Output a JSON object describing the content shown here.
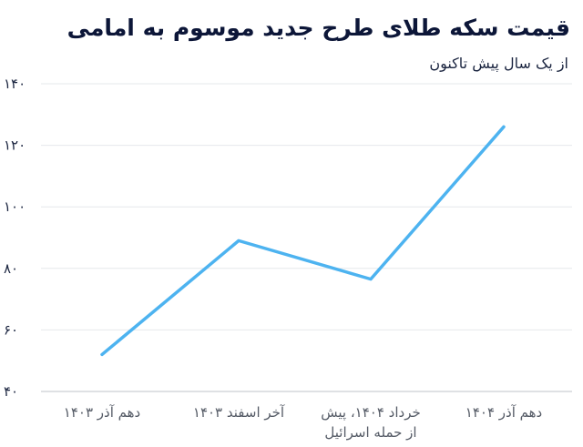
{
  "chart_data": {
    "type": "line",
    "title": "قیمت سکه طلای طرح جدید موسوم به امامی",
    "subtitle": "از یک سال پیش تاکنون",
    "xlabel": "",
    "ylabel": "",
    "categories": [
      [
        "دهم آذر ۱۴۰۳"
      ],
      [
        "آخر اسفند ۱۴۰۳"
      ],
      [
        "خرداد ۱۴۰۴، پیش",
        "از حمله اسرائیل"
      ],
      [
        "دهم آذر ۱۴۰۴"
      ]
    ],
    "series": [
      {
        "values": [
          52,
          89,
          76.5,
          126
        ],
        "color": "#4db3f0"
      }
    ],
    "ylim": [
      40,
      140
    ],
    "yticks": [
      40,
      60,
      80,
      100,
      120,
      140
    ],
    "ytick_labels": [
      "۴۰",
      "۶۰",
      "۸۰",
      "۱۰۰",
      "۱۲۰",
      "۱۴۰"
    ],
    "grid": true,
    "legend": "none"
  }
}
